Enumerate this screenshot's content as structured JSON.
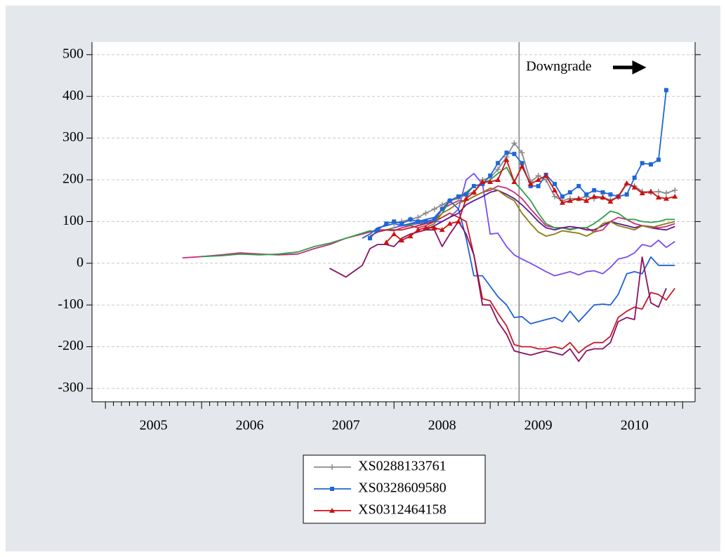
{
  "chart_data": {
    "type": "line",
    "x": [
      2005.8,
      2006.0,
      2006.2,
      2006.4,
      2006.6,
      2006.8,
      2007.0,
      2007.17,
      2007.33,
      2007.5,
      2007.67,
      2007.75,
      2007.83,
      2007.92,
      2008.0,
      2008.08,
      2008.17,
      2008.25,
      2008.33,
      2008.42,
      2008.5,
      2008.58,
      2008.67,
      2008.75,
      2008.83,
      2008.92,
      2009.0,
      2009.08,
      2009.17,
      2009.25,
      2009.33,
      2009.42,
      2009.5,
      2009.58,
      2009.67,
      2009.75,
      2009.83,
      2009.92,
      2010.0,
      2010.08,
      2010.17,
      2010.25,
      2010.33,
      2010.42,
      2010.5,
      2010.58,
      2010.67,
      2010.75,
      2010.83,
      2010.92
    ],
    "series": [
      {
        "color": "#cc2b7a",
        "values": [
          13,
          16,
          20,
          25,
          22,
          20,
          22,
          35,
          45,
          60,
          70,
          75,
          80,
          80,
          78,
          85,
          90,
          85,
          90,
          100,
          130,
          140,
          150,
          150,
          160,
          170,
          175,
          185,
          180,
          170,
          155,
          130,
          110,
          90,
          85,
          85,
          82,
          85,
          85,
          75,
          80,
          100,
          110,
          105,
          95,
          90,
          88,
          85,
          88,
          95
        ]
      },
      {
        "color": "#2e9e48",
        "values": [
          null,
          16,
          18,
          22,
          20,
          22,
          27,
          40,
          48,
          60,
          72,
          78,
          75,
          80,
          85,
          90,
          92,
          95,
          95,
          100,
          120,
          150,
          160,
          170,
          185,
          190,
          200,
          215,
          230,
          195,
          175,
          150,
          120,
          95,
          85,
          85,
          80,
          85,
          85,
          95,
          110,
          125,
          120,
          105,
          105,
          100,
          98,
          100,
          105,
          105
        ]
      },
      {
        "color": "#7a4cf0",
        "values": [
          null,
          null,
          null,
          null,
          null,
          null,
          null,
          null,
          null,
          null,
          null,
          null,
          null,
          null,
          85,
          90,
          95,
          95,
          100,
          100,
          100,
          110,
          130,
          200,
          215,
          190,
          70,
          72,
          40,
          20,
          10,
          0,
          -10,
          -20,
          -30,
          -25,
          -20,
          -28,
          -20,
          -18,
          -25,
          -10,
          10,
          15,
          25,
          45,
          40,
          55,
          38,
          52
        ]
      },
      {
        "color": "#2060d8",
        "values": [
          null,
          null,
          null,
          null,
          null,
          null,
          null,
          null,
          null,
          null,
          60,
          70,
          85,
          90,
          95,
          90,
          95,
          100,
          105,
          110,
          130,
          150,
          130,
          60,
          -30,
          -30,
          -55,
          -80,
          -100,
          -130,
          -128,
          -145,
          -140,
          -135,
          -130,
          -140,
          -115,
          -140,
          -120,
          -100,
          -98,
          -100,
          -75,
          -25,
          -20,
          -25,
          15,
          -5,
          -5,
          -5
        ]
      },
      {
        "color": "#c41a2a",
        "values": [
          null,
          null,
          null,
          null,
          null,
          null,
          null,
          null,
          null,
          null,
          null,
          65,
          75,
          80,
          80,
          80,
          85,
          90,
          95,
          100,
          110,
          120,
          110,
          100,
          20,
          -85,
          -90,
          -120,
          -150,
          -195,
          -200,
          -200,
          -205,
          -205,
          -200,
          -205,
          -190,
          -215,
          -200,
          -190,
          -190,
          -175,
          -130,
          -115,
          -105,
          -110,
          -70,
          -75,
          -88,
          -60
        ]
      },
      {
        "color": "#8a1060",
        "values": [
          null,
          null,
          null,
          null,
          null,
          null,
          null,
          null,
          -12,
          -33,
          -5,
          35,
          45,
          45,
          40,
          60,
          70,
          75,
          80,
          80,
          40,
          70,
          100,
          70,
          20,
          -100,
          -100,
          -140,
          -170,
          -210,
          -215,
          -220,
          -215,
          -210,
          -215,
          -220,
          -205,
          -235,
          -210,
          -205,
          -205,
          -190,
          -140,
          -130,
          -135,
          15,
          -95,
          -105,
          -60,
          null
        ]
      },
      {
        "color": "#5b1a8c",
        "values": [
          null,
          null,
          null,
          null,
          null,
          null,
          null,
          null,
          null,
          null,
          null,
          null,
          null,
          null,
          null,
          null,
          null,
          null,
          80,
          90,
          100,
          110,
          120,
          140,
          150,
          160,
          170,
          175,
          165,
          155,
          140,
          120,
          100,
          85,
          80,
          85,
          88,
          85,
          80,
          80,
          90,
          100,
          95,
          90,
          85,
          90,
          85,
          82,
          80,
          88
        ]
      },
      {
        "color": "#8c7a12",
        "values": [
          null,
          null,
          null,
          null,
          null,
          null,
          null,
          null,
          null,
          null,
          null,
          null,
          null,
          null,
          null,
          null,
          null,
          null,
          85,
          95,
          120,
          130,
          145,
          150,
          160,
          170,
          180,
          175,
          160,
          150,
          120,
          95,
          75,
          65,
          70,
          78,
          75,
          72,
          65,
          75,
          95,
          100,
          90,
          85,
          80,
          90,
          85,
          90,
          95,
          100
        ]
      },
      {
        "name": "XS0288133761",
        "color": "#8c8c8c",
        "marker": "plus",
        "values": [
          null,
          null,
          null,
          null,
          null,
          null,
          null,
          null,
          null,
          null,
          null,
          null,
          null,
          null,
          95,
          100,
          105,
          110,
          120,
          130,
          140,
          150,
          155,
          165,
          170,
          200,
          205,
          225,
          255,
          288,
          265,
          195,
          210,
          200,
          160,
          150,
          155,
          155,
          160,
          155,
          158,
          152,
          158,
          190,
          185,
          172,
          170,
          172,
          168,
          175
        ]
      },
      {
        "name": "XS0328609580",
        "color": "#1f66d6",
        "marker": "square",
        "values": [
          null,
          null,
          null,
          null,
          null,
          null,
          null,
          null,
          null,
          null,
          null,
          60,
          80,
          95,
          100,
          95,
          105,
          100,
          100,
          105,
          130,
          150,
          160,
          165,
          185,
          190,
          210,
          240,
          265,
          262,
          240,
          185,
          185,
          212,
          190,
          160,
          170,
          185,
          165,
          175,
          170,
          165,
          160,
          165,
          205,
          240,
          237,
          248,
          415,
          null
        ]
      },
      {
        "name": "XS0312464158",
        "color": "#cc1111",
        "marker": "triangle",
        "values": [
          null,
          null,
          null,
          null,
          null,
          null,
          null,
          null,
          null,
          null,
          null,
          null,
          null,
          50,
          70,
          55,
          65,
          80,
          85,
          85,
          80,
          95,
          100,
          155,
          170,
          195,
          195,
          200,
          248,
          195,
          232,
          190,
          200,
          210,
          175,
          145,
          150,
          155,
          150,
          160,
          158,
          148,
          160,
          192,
          182,
          168,
          172,
          158,
          155,
          160
        ]
      }
    ],
    "xlim": [
      2004.86,
      2011.13
    ],
    "xticks": [
      {
        "value": 2005.5,
        "label": "2005"
      },
      {
        "value": 2006.5,
        "label": "2006"
      },
      {
        "value": 2007.5,
        "label": "2007"
      },
      {
        "value": 2008.5,
        "label": "2008"
      },
      {
        "value": 2009.5,
        "label": "2009"
      },
      {
        "value": 2010.5,
        "label": "2010"
      }
    ],
    "ylim": [
      -332,
      530
    ],
    "yticks": [
      -300,
      -200,
      -100,
      0,
      100,
      200,
      300,
      400,
      500
    ],
    "grid": true,
    "annotations": [
      {
        "text": "Downgrade",
        "x": 2009.3
      }
    ]
  }
}
